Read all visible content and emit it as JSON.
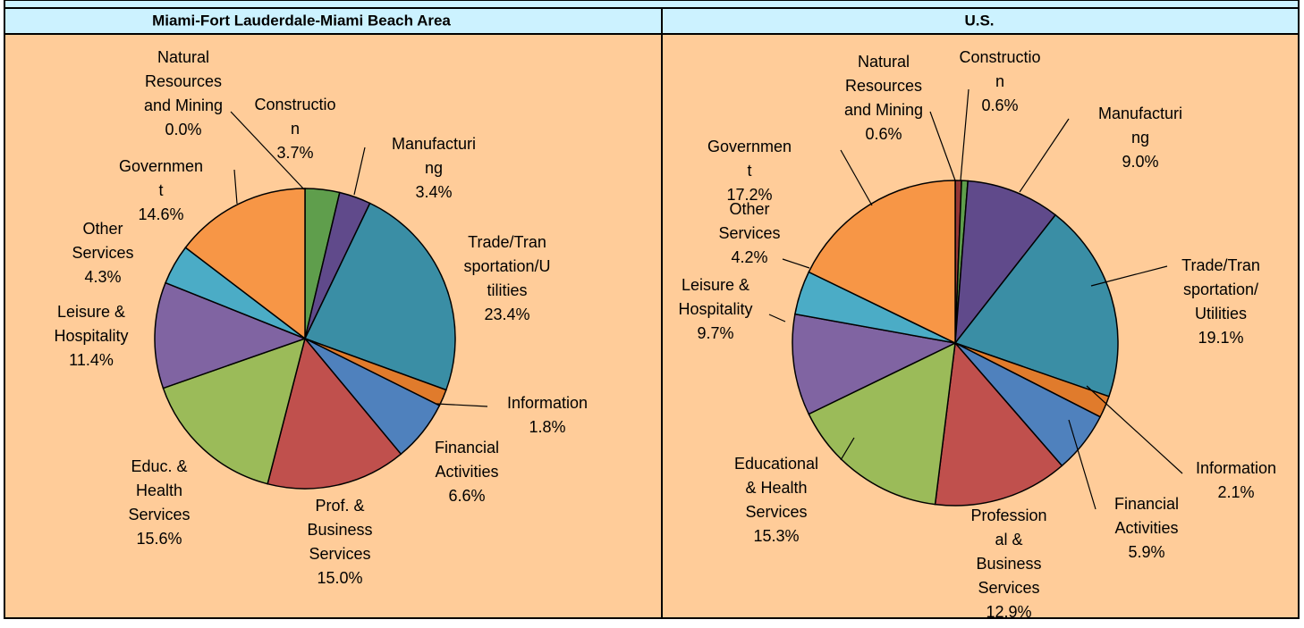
{
  "chart_data": [
    {
      "type": "pie",
      "title": "Miami-Fort Lauderdale-Miami Beach Area",
      "categories": [
        "Natural\nResources\nand Mining",
        "Constructio\nn",
        "Manufacturi\nng",
        "Trade/Tran\nsportation/U\ntilities",
        "Information",
        "Financial\nActivities",
        "Prof. &\nBusiness\nServices",
        "Educ. &\nHealth\nServices",
        "Leisure &\nHospitality",
        "Other\nServices",
        "Governmen\nt"
      ],
      "values": [
        0,
        3.7,
        3.4,
        23.4,
        1.8,
        6.6,
        15.0,
        15.6,
        11.4,
        4.3,
        14.6
      ],
      "value_labels": [
        "0.0%",
        "3.7%",
        "3.4%",
        "23.4%",
        "1.8%",
        "6.6%",
        "15.0%",
        "15.6%",
        "11.4%",
        "4.3%",
        "14.6%"
      ],
      "colors": [
        "#953735",
        "#5f9e4c",
        "#604a8b",
        "#3a8ea5",
        "#e07b2c",
        "#4f81bd",
        "#c0504d",
        "#9bbb59",
        "#8064a2",
        "#4bacc6",
        "#f79646"
      ]
    },
    {
      "type": "pie",
      "title": "U.S.",
      "categories": [
        "Natural\nResources\nand Mining",
        "Constructio\nn",
        "Manufacturi\nng",
        "Trade/Tran\nsportation/\nUtilities",
        "Information",
        "Financial\nActivities",
        "Profession\nal &\nBusiness\nServices",
        "Educational\n& Health\nServices",
        "Leisure &\nHospitality",
        "Other\nServices",
        "Governmen\nt"
      ],
      "values": [
        0.6,
        0.6,
        9.0,
        19.1,
        2.1,
        5.9,
        12.9,
        15.3,
        9.7,
        4.2,
        17.2
      ],
      "value_labels": [
        "0.6%",
        "0.6%",
        "9.0%",
        "19.1%",
        "2.1%",
        "5.9%",
        "12.9%",
        "15.3%",
        "9.7%",
        "4.2%",
        "17.2%"
      ],
      "colors": [
        "#953735",
        "#5f9e4c",
        "#604a8b",
        "#3a8ea5",
        "#e07b2c",
        "#4f81bd",
        "#c0504d",
        "#9bbb59",
        "#8064a2",
        "#4bacc6",
        "#f79646"
      ]
    }
  ]
}
